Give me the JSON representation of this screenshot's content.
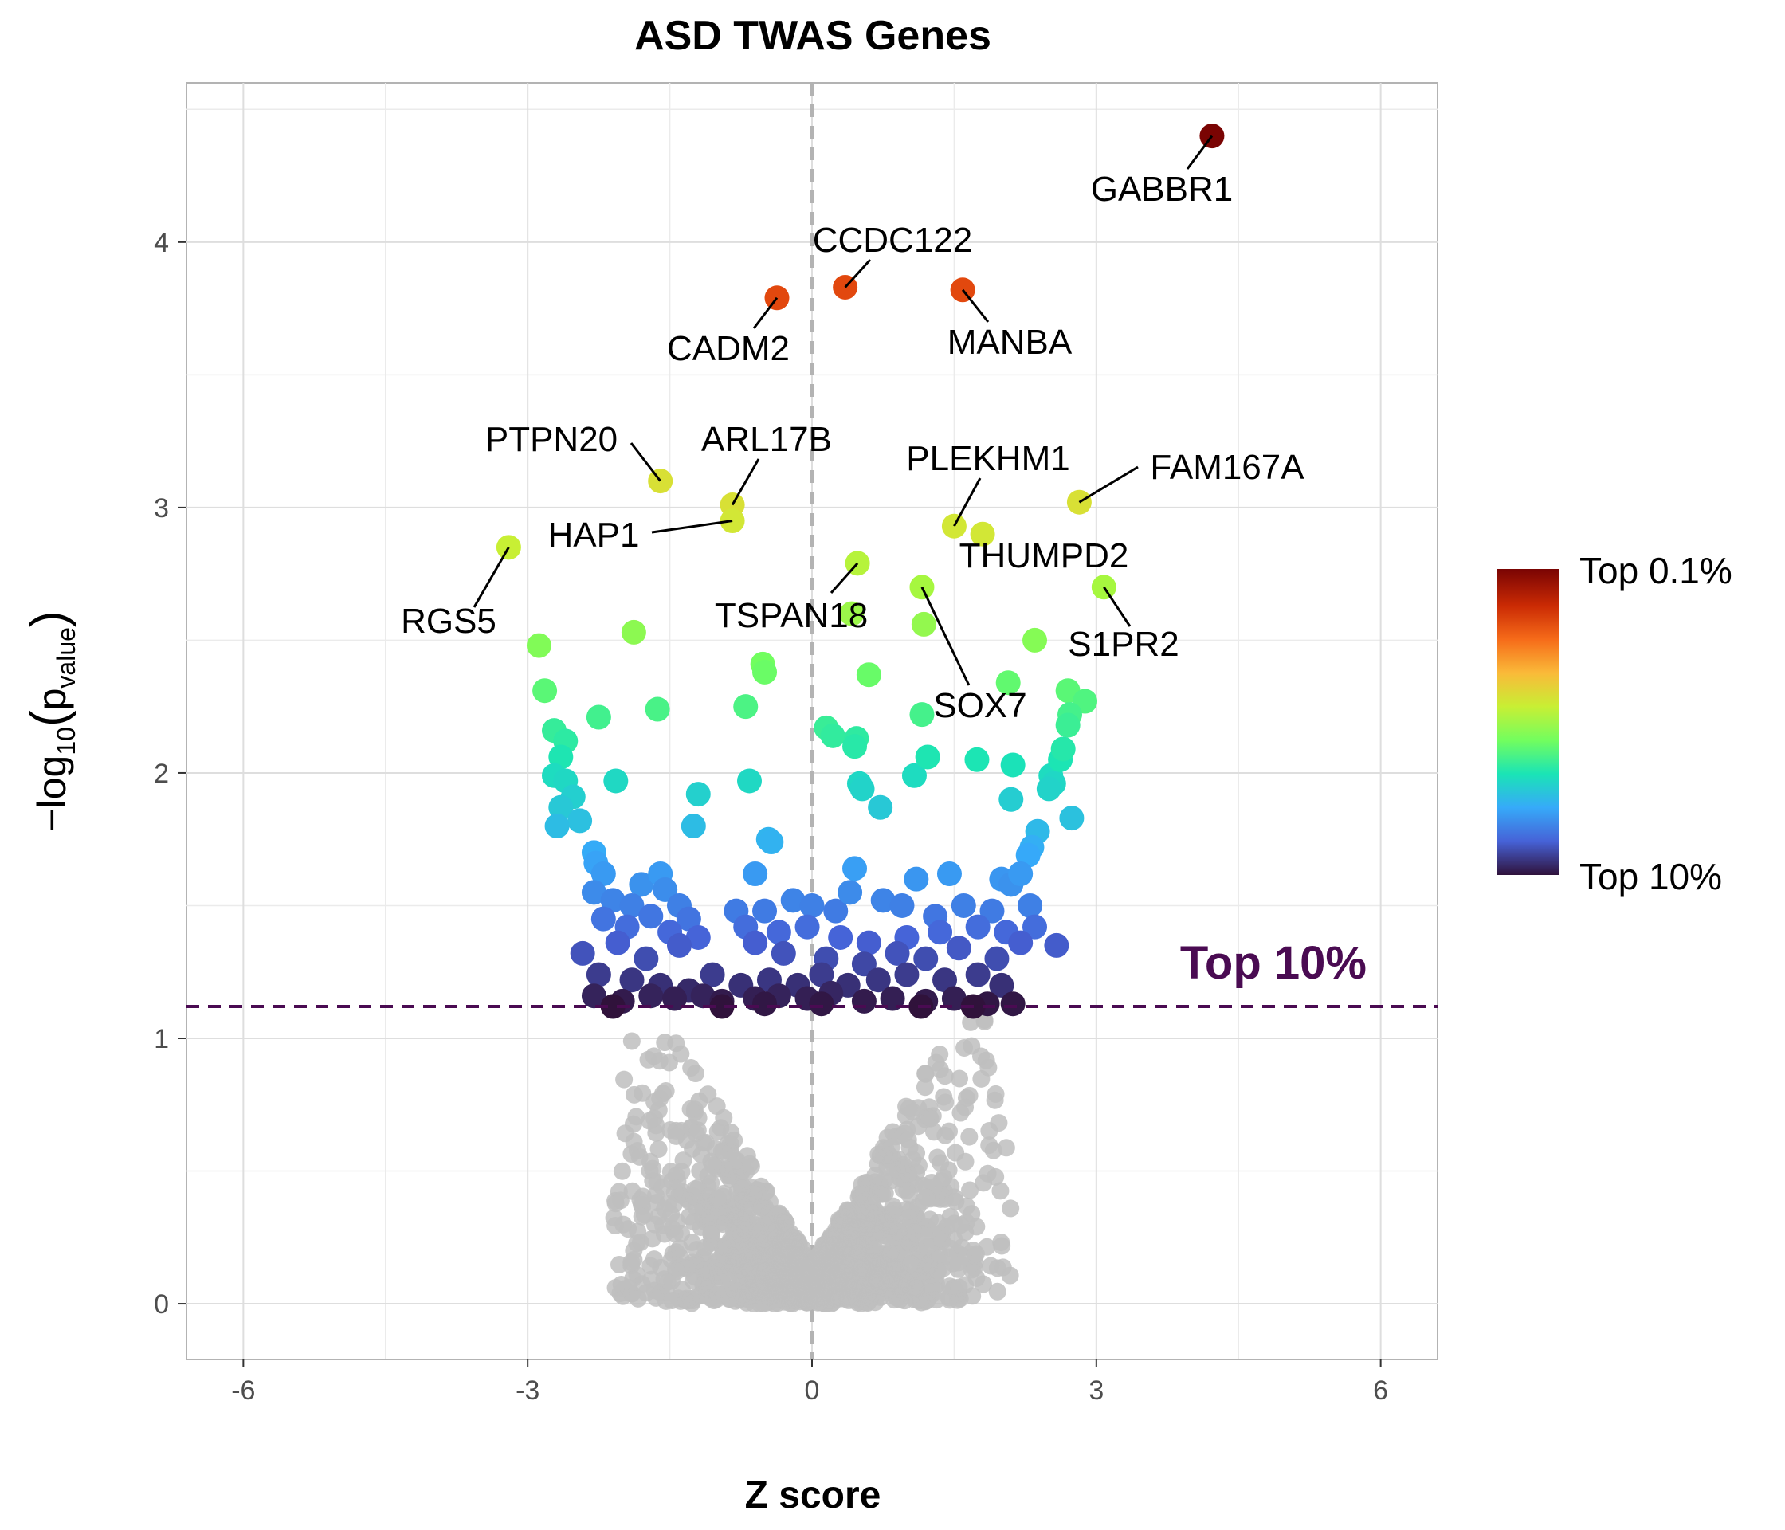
{
  "chart_data": {
    "type": "scatter",
    "title": "ASD TWAS Genes",
    "xlabel": "Z score",
    "ylabel": "-log10(pvalue)",
    "ylabel_parts": {
      "prefix": "−log",
      "sub": "10",
      "p": "p",
      "psub": "value"
    },
    "xlim": [
      -6.6,
      6.6
    ],
    "ylim": [
      -0.21,
      4.6
    ],
    "x_ticks": [
      -6,
      -3,
      0,
      3,
      6
    ],
    "x_tick_labels": [
      "-6",
      "-3",
      "0",
      "3",
      "6"
    ],
    "y_ticks": [
      0,
      1,
      2,
      3,
      4
    ],
    "y_tick_labels": [
      "0",
      "1",
      "2",
      "3",
      "4"
    ],
    "grid": true,
    "threshold": {
      "y": 1.12,
      "label": "Top 10%",
      "color": "#4a0b52"
    },
    "zero_line": {
      "x": 0,
      "color": "#b3b3b3"
    },
    "colorbar": {
      "placement": "right",
      "top_label": "Top 0.1%",
      "bottom_label": "Top 10%",
      "colors": [
        "#30123b",
        "#4662d7",
        "#36aaf9",
        "#1ae4b6",
        "#72fe5e",
        "#c8ef34",
        "#faba39",
        "#f66b19",
        "#ca2a04",
        "#7a0403"
      ]
    },
    "labeled_genes": [
      {
        "label": "GABBR1",
        "x": 4.22,
        "y": 4.4,
        "color": "#7a0403"
      },
      {
        "label": "CCDC122",
        "x": 0.35,
        "y": 3.83,
        "color": "#e2480e"
      },
      {
        "label": "CADM2",
        "x": -0.37,
        "y": 3.79,
        "color": "#e2480e"
      },
      {
        "label": "MANBA",
        "x": 1.59,
        "y": 3.82,
        "color": "#e2480e"
      },
      {
        "label": "PTPN20",
        "x": -1.6,
        "y": 3.1,
        "color": "#d8e035"
      },
      {
        "label": "ARL17B",
        "x": -0.84,
        "y": 3.01,
        "color": "#d8e035"
      },
      {
        "label": "HAP1",
        "x": -0.84,
        "y": 2.95,
        "color": "#d2e736"
      },
      {
        "label": "PLEKHM1",
        "x": 1.5,
        "y": 2.93,
        "color": "#d2e736"
      },
      {
        "label": "FAM167A",
        "x": 2.82,
        "y": 3.02,
        "color": "#d8e035"
      },
      {
        "label": "RGS5",
        "x": -3.2,
        "y": 2.85,
        "color": "#c8ef34"
      },
      {
        "label": "THUMPD2",
        "x": 1.8,
        "y": 2.9,
        "color": "#d2e736"
      },
      {
        "label": "TSPAN18",
        "x": 0.48,
        "y": 2.79,
        "color": "#b6f33b"
      },
      {
        "label": "S1PR2",
        "x": 3.08,
        "y": 2.7,
        "color": "#a6f73f"
      },
      {
        "label": "SOX7",
        "x": 1.16,
        "y": 2.7,
        "color": "#a6f73f"
      }
    ],
    "highlight_points": [
      [
        -2.88,
        2.48
      ],
      [
        -1.88,
        2.53
      ],
      [
        -2.82,
        2.31
      ],
      [
        -2.25,
        2.21
      ],
      [
        -1.63,
        2.24
      ],
      [
        -0.7,
        2.25
      ],
      [
        -0.52,
        2.41
      ],
      [
        -0.5,
        2.38
      ],
      [
        0.42,
        2.6
      ],
      [
        0.6,
        2.37
      ],
      [
        1.18,
        2.56
      ],
      [
        1.16,
        2.22
      ],
      [
        2.07,
        2.34
      ],
      [
        2.35,
        2.5
      ],
      [
        2.7,
        2.31
      ],
      [
        2.88,
        2.27
      ],
      [
        2.72,
        2.22
      ],
      [
        2.7,
        2.18
      ],
      [
        -2.72,
        2.16
      ],
      [
        -2.6,
        2.12
      ],
      [
        -2.65,
        2.06
      ],
      [
        -2.72,
        1.99
      ],
      [
        -2.6,
        1.97
      ],
      [
        -2.07,
        1.97
      ],
      [
        -0.66,
        1.97
      ],
      [
        -2.52,
        1.91
      ],
      [
        -2.65,
        1.87
      ],
      [
        -2.45,
        1.82
      ],
      [
        -2.69,
        1.8
      ],
      [
        -1.2,
        1.92
      ],
      [
        -1.25,
        1.8
      ],
      [
        -0.46,
        1.75
      ],
      [
        -0.43,
        1.74
      ],
      [
        0.15,
        2.17
      ],
      [
        0.22,
        2.14
      ],
      [
        0.47,
        2.13
      ],
      [
        0.45,
        2.1
      ],
      [
        0.5,
        1.96
      ],
      [
        0.53,
        1.94
      ],
      [
        0.72,
        1.87
      ],
      [
        1.08,
        1.99
      ],
      [
        1.22,
        2.06
      ],
      [
        1.74,
        2.05
      ],
      [
        2.12,
        2.03
      ],
      [
        2.1,
        1.9
      ],
      [
        2.52,
        1.99
      ],
      [
        2.55,
        1.96
      ],
      [
        2.5,
        1.94
      ],
      [
        2.62,
        2.05
      ],
      [
        2.65,
        2.09
      ],
      [
        2.74,
        1.83
      ],
      [
        2.38,
        1.78
      ],
      [
        2.32,
        1.72
      ],
      [
        2.28,
        1.69
      ],
      [
        -2.3,
        1.7
      ],
      [
        -2.28,
        1.66
      ],
      [
        -2.2,
        1.62
      ],
      [
        -1.8,
        1.58
      ],
      [
        -1.6,
        1.62
      ],
      [
        -1.55,
        1.56
      ],
      [
        -1.4,
        1.5
      ],
      [
        -0.6,
        1.62
      ],
      [
        0.45,
        1.64
      ],
      [
        1.1,
        1.6
      ],
      [
        1.45,
        1.62
      ],
      [
        2.0,
        1.6
      ],
      [
        2.1,
        1.58
      ],
      [
        2.2,
        1.62
      ],
      [
        -2.3,
        1.55
      ],
      [
        -2.1,
        1.52
      ],
      [
        -1.9,
        1.5
      ],
      [
        -1.7,
        1.46
      ],
      [
        -1.3,
        1.45
      ],
      [
        -0.8,
        1.48
      ],
      [
        -0.5,
        1.48
      ],
      [
        -0.2,
        1.52
      ],
      [
        0.0,
        1.5
      ],
      [
        0.25,
        1.48
      ],
      [
        0.4,
        1.55
      ],
      [
        0.75,
        1.52
      ],
      [
        0.95,
        1.5
      ],
      [
        1.3,
        1.46
      ],
      [
        1.6,
        1.5
      ],
      [
        1.9,
        1.48
      ],
      [
        2.3,
        1.5
      ],
      [
        -2.2,
        1.45
      ],
      [
        -1.95,
        1.42
      ],
      [
        -1.5,
        1.4
      ],
      [
        -1.2,
        1.38
      ],
      [
        -0.7,
        1.42
      ],
      [
        -0.35,
        1.4
      ],
      [
        -0.05,
        1.42
      ],
      [
        0.3,
        1.38
      ],
      [
        0.6,
        1.36
      ],
      [
        1.0,
        1.38
      ],
      [
        1.35,
        1.4
      ],
      [
        1.75,
        1.42
      ],
      [
        2.05,
        1.4
      ],
      [
        2.35,
        1.42
      ],
      [
        2.58,
        1.35
      ],
      [
        -2.42,
        1.32
      ],
      [
        -2.05,
        1.36
      ],
      [
        -1.75,
        1.3
      ],
      [
        -1.4,
        1.35
      ],
      [
        -0.6,
        1.36
      ],
      [
        -0.3,
        1.32
      ],
      [
        0.15,
        1.3
      ],
      [
        0.55,
        1.28
      ],
      [
        0.9,
        1.32
      ],
      [
        1.2,
        1.3
      ],
      [
        1.55,
        1.34
      ],
      [
        1.95,
        1.3
      ],
      [
        2.2,
        1.36
      ],
      [
        -2.25,
        1.24
      ],
      [
        -1.9,
        1.22
      ],
      [
        -1.6,
        1.2
      ],
      [
        -1.3,
        1.18
      ],
      [
        -1.05,
        1.24
      ],
      [
        -0.75,
        1.2
      ],
      [
        -0.45,
        1.22
      ],
      [
        -0.15,
        1.2
      ],
      [
        0.1,
        1.24
      ],
      [
        0.38,
        1.2
      ],
      [
        0.7,
        1.22
      ],
      [
        1.0,
        1.24
      ],
      [
        1.4,
        1.22
      ],
      [
        1.75,
        1.24
      ],
      [
        2.0,
        1.2
      ],
      [
        -2.3,
        1.16
      ],
      [
        -2.0,
        1.14
      ],
      [
        -1.7,
        1.16
      ],
      [
        -1.45,
        1.15
      ],
      [
        -1.15,
        1.16
      ],
      [
        -0.95,
        1.14
      ],
      [
        -0.6,
        1.15
      ],
      [
        -0.35,
        1.16
      ],
      [
        -0.05,
        1.15
      ],
      [
        0.2,
        1.17
      ],
      [
        0.55,
        1.14
      ],
      [
        0.85,
        1.15
      ],
      [
        1.2,
        1.14
      ],
      [
        1.5,
        1.15
      ],
      [
        1.85,
        1.13
      ],
      [
        2.12,
        1.13
      ],
      [
        -2.1,
        1.12
      ],
      [
        -0.95,
        1.12
      ],
      [
        -0.5,
        1.13
      ],
      [
        0.1,
        1.13
      ],
      [
        1.15,
        1.12
      ],
      [
        1.7,
        1.12
      ]
    ]
  }
}
